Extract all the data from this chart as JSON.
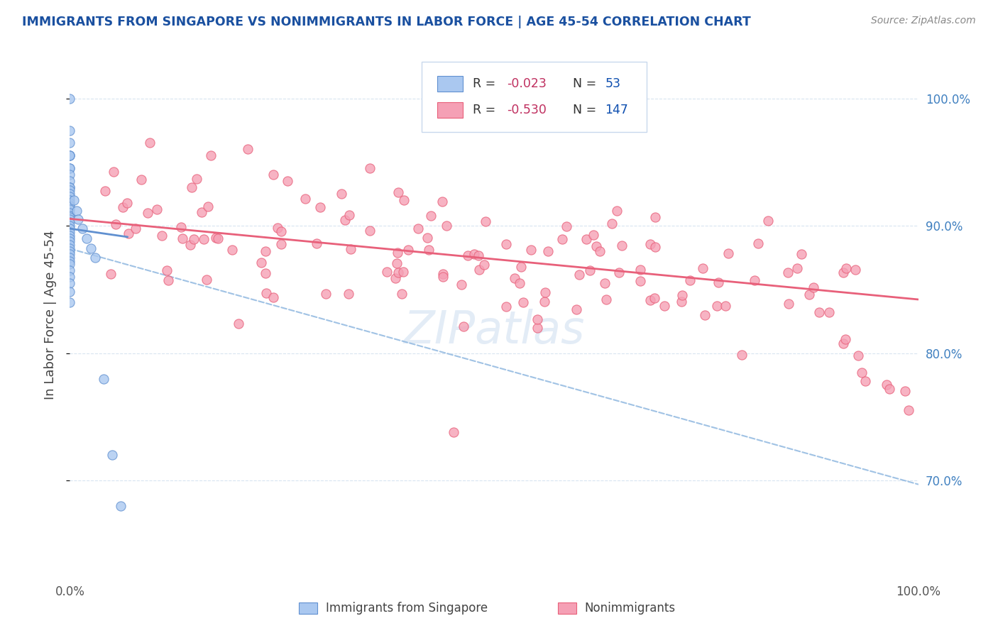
{
  "title": "IMMIGRANTS FROM SINGAPORE VS NONIMMIGRANTS IN LABOR FORCE | AGE 45-54 CORRELATION CHART",
  "source_text": "Source: ZipAtlas.com",
  "ylabel": "In Labor Force | Age 45-54",
  "xlim": [
    0.0,
    1.0
  ],
  "ylim": [
    0.625,
    1.035
  ],
  "ytick_positions": [
    0.7,
    0.8,
    0.9,
    1.0
  ],
  "ytick_labels_right": [
    "100.0%",
    "90.0%",
    "80.0%",
    "70.0%"
  ],
  "ytick_positions_right": [
    1.0,
    0.9,
    0.8,
    0.7
  ],
  "color_blue": "#aac8f0",
  "color_pink": "#f5a0b5",
  "color_blue_line": "#6090d0",
  "color_pink_line": "#e8607a",
  "color_dashed": "#90b8e0",
  "title_color": "#1a50a0",
  "source_color": "#888888",
  "background_color": "#ffffff",
  "watermark_color": "#ccddf0",
  "watermark_alpha": 0.55,
  "grid_color": "#d8e4f0",
  "right_label_color": "#4080c0"
}
